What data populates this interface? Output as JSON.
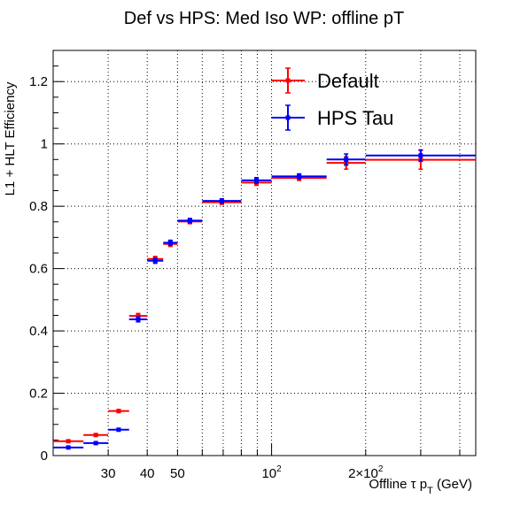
{
  "chart_data": {
    "type": "scatter",
    "title": "Def vs HPS: Med Iso WP: offline pT",
    "ylabel": "L1 + HLT Efficiency",
    "xlabel_main": "Offline  τ p",
    "xlabel_sub": "T",
    "xlabel_unit": " (GeV)",
    "x_scale": "log",
    "xlim": [
      20,
      450
    ],
    "ylim": [
      0,
      1.3
    ],
    "grid": true,
    "legend_position": "top-right",
    "y_ticks": [
      0,
      0.2,
      0.4,
      0.6,
      0.8,
      1,
      1.2
    ],
    "y_tick_labels": [
      "0",
      "0.2",
      "0.4",
      "0.6",
      "0.8",
      "1",
      "1.2"
    ],
    "x_tick_labels": [
      {
        "x": 30,
        "text": "30"
      },
      {
        "x": 40,
        "text": "40"
      },
      {
        "x": 50,
        "text": "50"
      },
      {
        "x": 100,
        "text": "10",
        "sup": "2"
      },
      {
        "x": 200,
        "text": "2×10",
        "sup": "2"
      }
    ],
    "x_gridlines": [
      30,
      40,
      50,
      60,
      70,
      80,
      90,
      100,
      200,
      300,
      400
    ],
    "series": [
      {
        "name": "Default",
        "color": "#ff0000",
        "points": [
          {
            "xlo": 20,
            "xhi": 25,
            "y": 0.046,
            "err": 0.003
          },
          {
            "xlo": 25,
            "xhi": 30,
            "y": 0.066,
            "err": 0.003
          },
          {
            "xlo": 30,
            "xhi": 35,
            "y": 0.143,
            "err": 0.005
          },
          {
            "xlo": 35,
            "xhi": 40,
            "y": 0.448,
            "err": 0.008
          },
          {
            "xlo": 40,
            "xhi": 45,
            "y": 0.631,
            "err": 0.008
          },
          {
            "xlo": 45,
            "xhi": 50,
            "y": 0.679,
            "err": 0.008
          },
          {
            "xlo": 50,
            "xhi": 60,
            "y": 0.751,
            "err": 0.007
          },
          {
            "xlo": 60,
            "xhi": 80,
            "y": 0.813,
            "err": 0.007
          },
          {
            "xlo": 80,
            "xhi": 100,
            "y": 0.876,
            "err": 0.009
          },
          {
            "xlo": 100,
            "xhi": 150,
            "y": 0.891,
            "err": 0.008
          },
          {
            "xlo": 150,
            "xhi": 200,
            "y": 0.939,
            "err": 0.02
          },
          {
            "xlo": 200,
            "xhi": 450,
            "y": 0.949,
            "err": 0.03
          }
        ]
      },
      {
        "name": "HPS Tau",
        "color": "#0000ff",
        "points": [
          {
            "xlo": 20,
            "xhi": 25,
            "y": 0.026,
            "err": 0.003
          },
          {
            "xlo": 25,
            "xhi": 30,
            "y": 0.04,
            "err": 0.003
          },
          {
            "xlo": 30,
            "xhi": 35,
            "y": 0.083,
            "err": 0.004
          },
          {
            "xlo": 35,
            "xhi": 40,
            "y": 0.437,
            "err": 0.008
          },
          {
            "xlo": 40,
            "xhi": 45,
            "y": 0.625,
            "err": 0.008
          },
          {
            "xlo": 45,
            "xhi": 50,
            "y": 0.683,
            "err": 0.008
          },
          {
            "xlo": 50,
            "xhi": 60,
            "y": 0.754,
            "err": 0.007
          },
          {
            "xlo": 60,
            "xhi": 80,
            "y": 0.817,
            "err": 0.007
          },
          {
            "xlo": 80,
            "xhi": 100,
            "y": 0.883,
            "err": 0.009
          },
          {
            "xlo": 100,
            "xhi": 150,
            "y": 0.896,
            "err": 0.008
          },
          {
            "xlo": 150,
            "xhi": 200,
            "y": 0.95,
            "err": 0.018
          },
          {
            "xlo": 200,
            "xhi": 450,
            "y": 0.963,
            "err": 0.018
          }
        ]
      }
    ]
  }
}
